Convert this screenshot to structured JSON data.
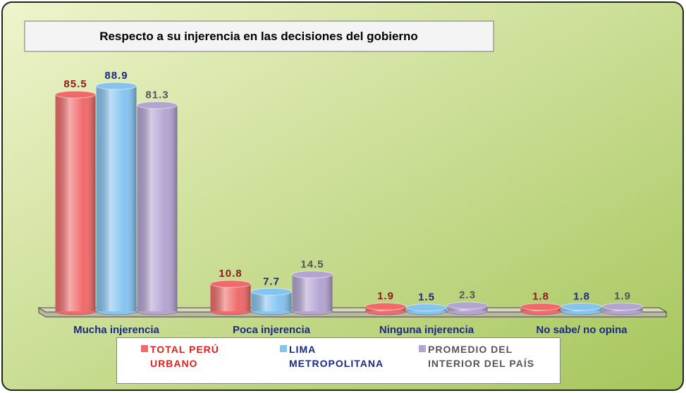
{
  "chart_data": {
    "type": "bar",
    "title": "Respecto a su injerencia en las decisiones del gobierno",
    "categories": [
      "Mucha injerencia",
      "Poca injerencia",
      "Ninguna injerencia",
      "No sabe/ no opina"
    ],
    "series": [
      {
        "name": "TOTAL PERÚ URBANO",
        "color": "#f06a6a",
        "label_color": "#8b1a1a",
        "legend_text_color": "#e02020",
        "values": [
          85.5,
          10.8,
          1.9,
          1.8
        ]
      },
      {
        "name": "LIMA METROPOLITANA",
        "color": "#86c4f0",
        "label_color": "#1a2a80",
        "legend_text_color": "#1a2a80",
        "values": [
          88.9,
          7.7,
          1.5,
          1.8
        ]
      },
      {
        "name": "PROMEDIO DEL INTERIOR DEL PAÍS",
        "color": "#b4a4d2",
        "label_color": "#555555",
        "legend_text_color": "#555555",
        "values": [
          81.3,
          14.5,
          2.3,
          1.9
        ]
      }
    ]
  }
}
